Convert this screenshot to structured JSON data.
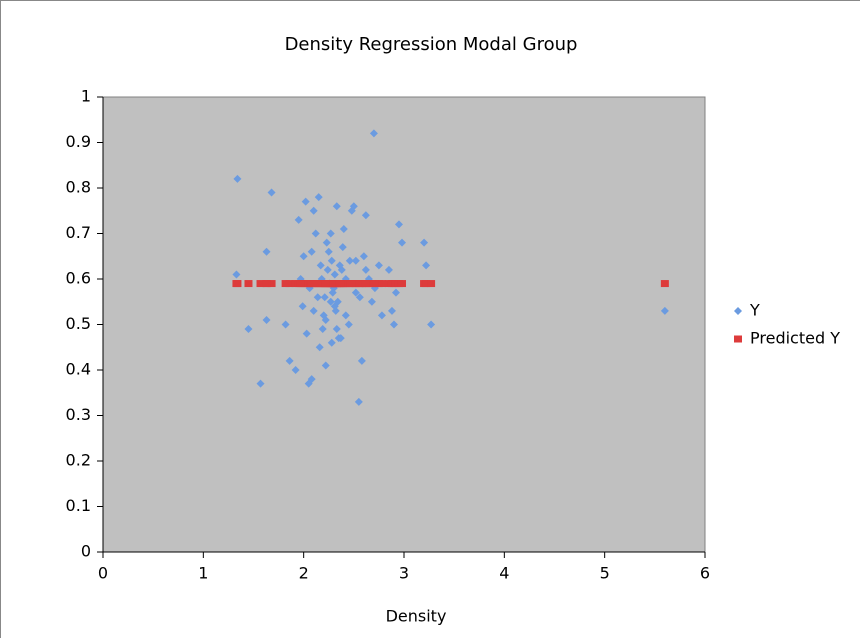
{
  "chart_data": {
    "type": "scatter",
    "title": "Density Regression Modal Group",
    "x_label": "Density",
    "xlim": [
      0,
      6
    ],
    "xticks": [
      0,
      1,
      2,
      3,
      4,
      5,
      6
    ],
    "ylim": [
      0,
      1
    ],
    "yticks": [
      0,
      0.1,
      0.2,
      0.3,
      0.4,
      0.5,
      0.6,
      0.7,
      0.8,
      0.9,
      1
    ],
    "legend": "right",
    "x": [
      1.34,
      2.7,
      1.68,
      1.33,
      1.45,
      1.57,
      1.63,
      1.63,
      1.82,
      1.86,
      1.92,
      1.95,
      2.0,
      2.02,
      2.03,
      2.05,
      2.08,
      2.1,
      2.12,
      2.15,
      2.18,
      2.2,
      2.22,
      2.25,
      2.27,
      2.28,
      2.3,
      2.32,
      2.33,
      2.35,
      2.38,
      2.4,
      2.42,
      2.45,
      2.48,
      2.5,
      2.52,
      2.55,
      2.58,
      2.6,
      2.62,
      2.65,
      2.68,
      2.75,
      2.78,
      2.85,
      2.88,
      2.9,
      2.92,
      2.95,
      2.98,
      3.2,
      3.22,
      3.27,
      5.6,
      2.21,
      2.24,
      2.26,
      2.29,
      2.31,
      2.34,
      2.36,
      2.23,
      2.27,
      2.31,
      2.19,
      2.14,
      2.1,
      2.06,
      2.42,
      2.46,
      2.39,
      2.33,
      2.28,
      2.17,
      1.99,
      1.97,
      2.52,
      2.56,
      2.62,
      2.71,
      2.16,
      2.37,
      2.22,
      2.08
    ],
    "series": [
      {
        "name": "Y",
        "color": "#6b9be0",
        "marker": "diamond",
        "values": [
          0.82,
          0.92,
          0.79,
          0.61,
          0.49,
          0.37,
          0.51,
          0.66,
          0.5,
          0.42,
          0.4,
          0.73,
          0.65,
          0.77,
          0.48,
          0.37,
          0.38,
          0.75,
          0.7,
          0.78,
          0.6,
          0.52,
          0.41,
          0.66,
          0.55,
          0.64,
          0.58,
          0.53,
          0.76,
          0.47,
          0.62,
          0.71,
          0.6,
          0.5,
          0.75,
          0.76,
          0.57,
          0.33,
          0.42,
          0.65,
          0.74,
          0.6,
          0.55,
          0.63,
          0.52,
          0.62,
          0.53,
          0.5,
          0.57,
          0.72,
          0.68,
          0.68,
          0.63,
          0.5,
          0.53,
          0.56,
          0.62,
          0.59,
          0.57,
          0.61,
          0.55,
          0.63,
          0.68,
          0.7,
          0.54,
          0.49,
          0.56,
          0.53,
          0.58,
          0.52,
          0.64,
          0.67,
          0.49,
          0.46,
          0.63,
          0.54,
          0.6,
          0.64,
          0.56,
          0.62,
          0.58,
          0.45,
          0.47,
          0.51,
          0.66
        ]
      },
      {
        "name": "Predicted Y",
        "color": "#dd3b3b",
        "marker": "square",
        "values": [
          0.59,
          0.59,
          0.59,
          0.59,
          0.59,
          0.59,
          0.59,
          0.59,
          0.59,
          0.59,
          0.59,
          0.59,
          0.59,
          0.59,
          0.59,
          0.59,
          0.59,
          0.59,
          0.59,
          0.59,
          0.59,
          0.59,
          0.59,
          0.59,
          0.59,
          0.59,
          0.59,
          0.59,
          0.59,
          0.59,
          0.59,
          0.59,
          0.59,
          0.59,
          0.59,
          0.59,
          0.59,
          0.59,
          0.59,
          0.59,
          0.59,
          0.59,
          0.59,
          0.59,
          0.59,
          0.59,
          0.59,
          0.59,
          0.59,
          0.59,
          0.59,
          0.59,
          0.59,
          0.59,
          0.59,
          0.59,
          0.59,
          0.59,
          0.59,
          0.59,
          0.59,
          0.59,
          0.59,
          0.59,
          0.59,
          0.59,
          0.59,
          0.59,
          0.59,
          0.59,
          0.59,
          0.59,
          0.59,
          0.59,
          0.59,
          0.59,
          0.59,
          0.59,
          0.59,
          0.59,
          0.59,
          0.59,
          0.59,
          0.59,
          0.59
        ]
      }
    ]
  }
}
